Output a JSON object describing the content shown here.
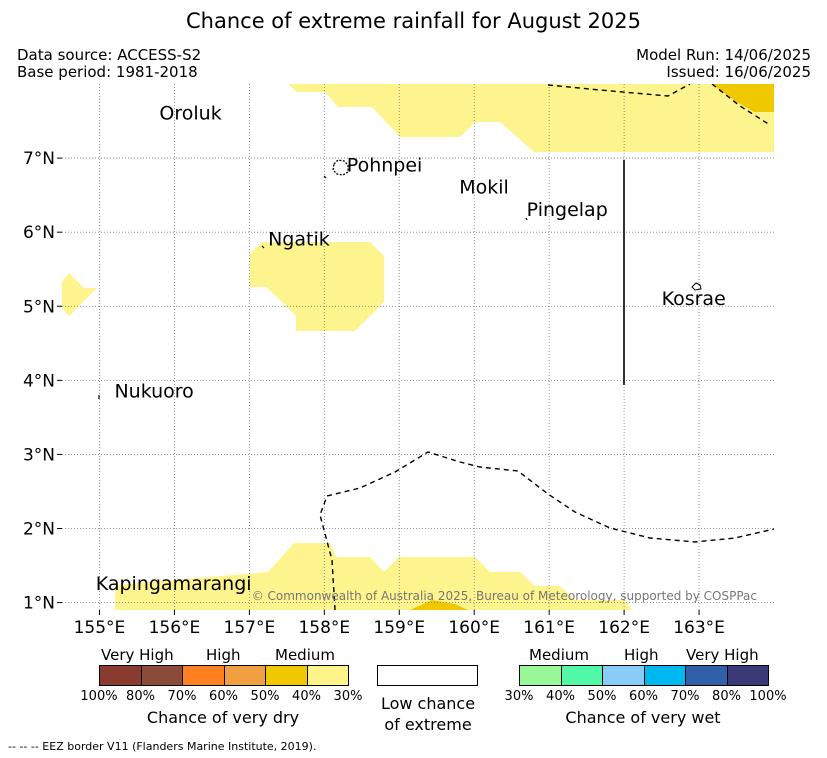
{
  "title": "Chance of extreme rainfall for August 2025",
  "header": {
    "data_source": "Data source: ACCESS-S2",
    "base_period": "Base period: 1981-2018",
    "model_run": "Model Run: 14/06/2025",
    "issued": "Issued: 16/06/2025"
  },
  "map": {
    "lon_range": [
      154.5,
      164.0
    ],
    "lat_range": [
      0.9,
      8.0
    ],
    "lon_ticks": [
      {
        "value": 155,
        "label": "155°E"
      },
      {
        "value": 156,
        "label": "156°E"
      },
      {
        "value": 157,
        "label": "157°E"
      },
      {
        "value": 158,
        "label": "158°E"
      },
      {
        "value": 159,
        "label": "159°E"
      },
      {
        "value": 160,
        "label": "160°E"
      },
      {
        "value": 161,
        "label": "161°E"
      },
      {
        "value": 162,
        "label": "162°E"
      },
      {
        "value": 163,
        "label": "163°E"
      }
    ],
    "lat_ticks": [
      {
        "value": 1,
        "label": "1°N"
      },
      {
        "value": 2,
        "label": "2°N"
      },
      {
        "value": 3,
        "label": "3°N"
      },
      {
        "value": 4,
        "label": "4°N"
      },
      {
        "value": 5,
        "label": "5°N"
      },
      {
        "value": 6,
        "label": "6°N"
      },
      {
        "value": 7,
        "label": "7°N"
      }
    ],
    "grid": true,
    "places": [
      {
        "name": "Oroluk",
        "lon": 155.8,
        "lat": 7.6
      },
      {
        "name": "Pohnpei",
        "lon": 158.3,
        "lat": 6.9
      },
      {
        "name": "Mokil",
        "lon": 159.8,
        "lat": 6.6
      },
      {
        "name": "Pingelap",
        "lon": 160.7,
        "lat": 6.3
      },
      {
        "name": "Ngatik",
        "lon": 157.25,
        "lat": 5.9
      },
      {
        "name": "Kosrae",
        "lon": 162.5,
        "lat": 5.1
      },
      {
        "name": "Nukuoro",
        "lon": 155.2,
        "lat": 3.85
      },
      {
        "name": "Kapingamarangi",
        "lon": 154.95,
        "lat": 1.25
      }
    ],
    "copyright": "© Commonwealth of Australia 2025, Bureau of Meteorology, supported by COSPPac"
  },
  "legend": {
    "dry": {
      "headings": [
        "Very High",
        "High",
        "Medium"
      ],
      "colors": [
        "#8b3a2f",
        "#8b4b3a",
        "#ff8020",
        "#f0a040",
        "#f0c800",
        "#fff48a"
      ],
      "labels": [
        "100%",
        "80%",
        "70%",
        "60%",
        "50%",
        "40%",
        "30%"
      ],
      "title": "Chance of very dry"
    },
    "low": {
      "line1": "Low chance",
      "line2": "of extreme"
    },
    "wet": {
      "headings": [
        "Medium",
        "High",
        "Very High"
      ],
      "colors": [
        "#98f898",
        "#50f8a8",
        "#88ccf8",
        "#00b8f0",
        "#3060a8",
        "#3a3a78"
      ],
      "labels": [
        "30%",
        "40%",
        "50%",
        "60%",
        "70%",
        "80%",
        "100%"
      ],
      "title": "Chance of very wet"
    }
  },
  "footnote": "-- -- -- EEZ border V11 (Flanders Marine Institute, 2019).",
  "colors": {
    "medium_dry": "#fdf48d",
    "high_dry": "#f0c800",
    "grid": "#777777"
  }
}
